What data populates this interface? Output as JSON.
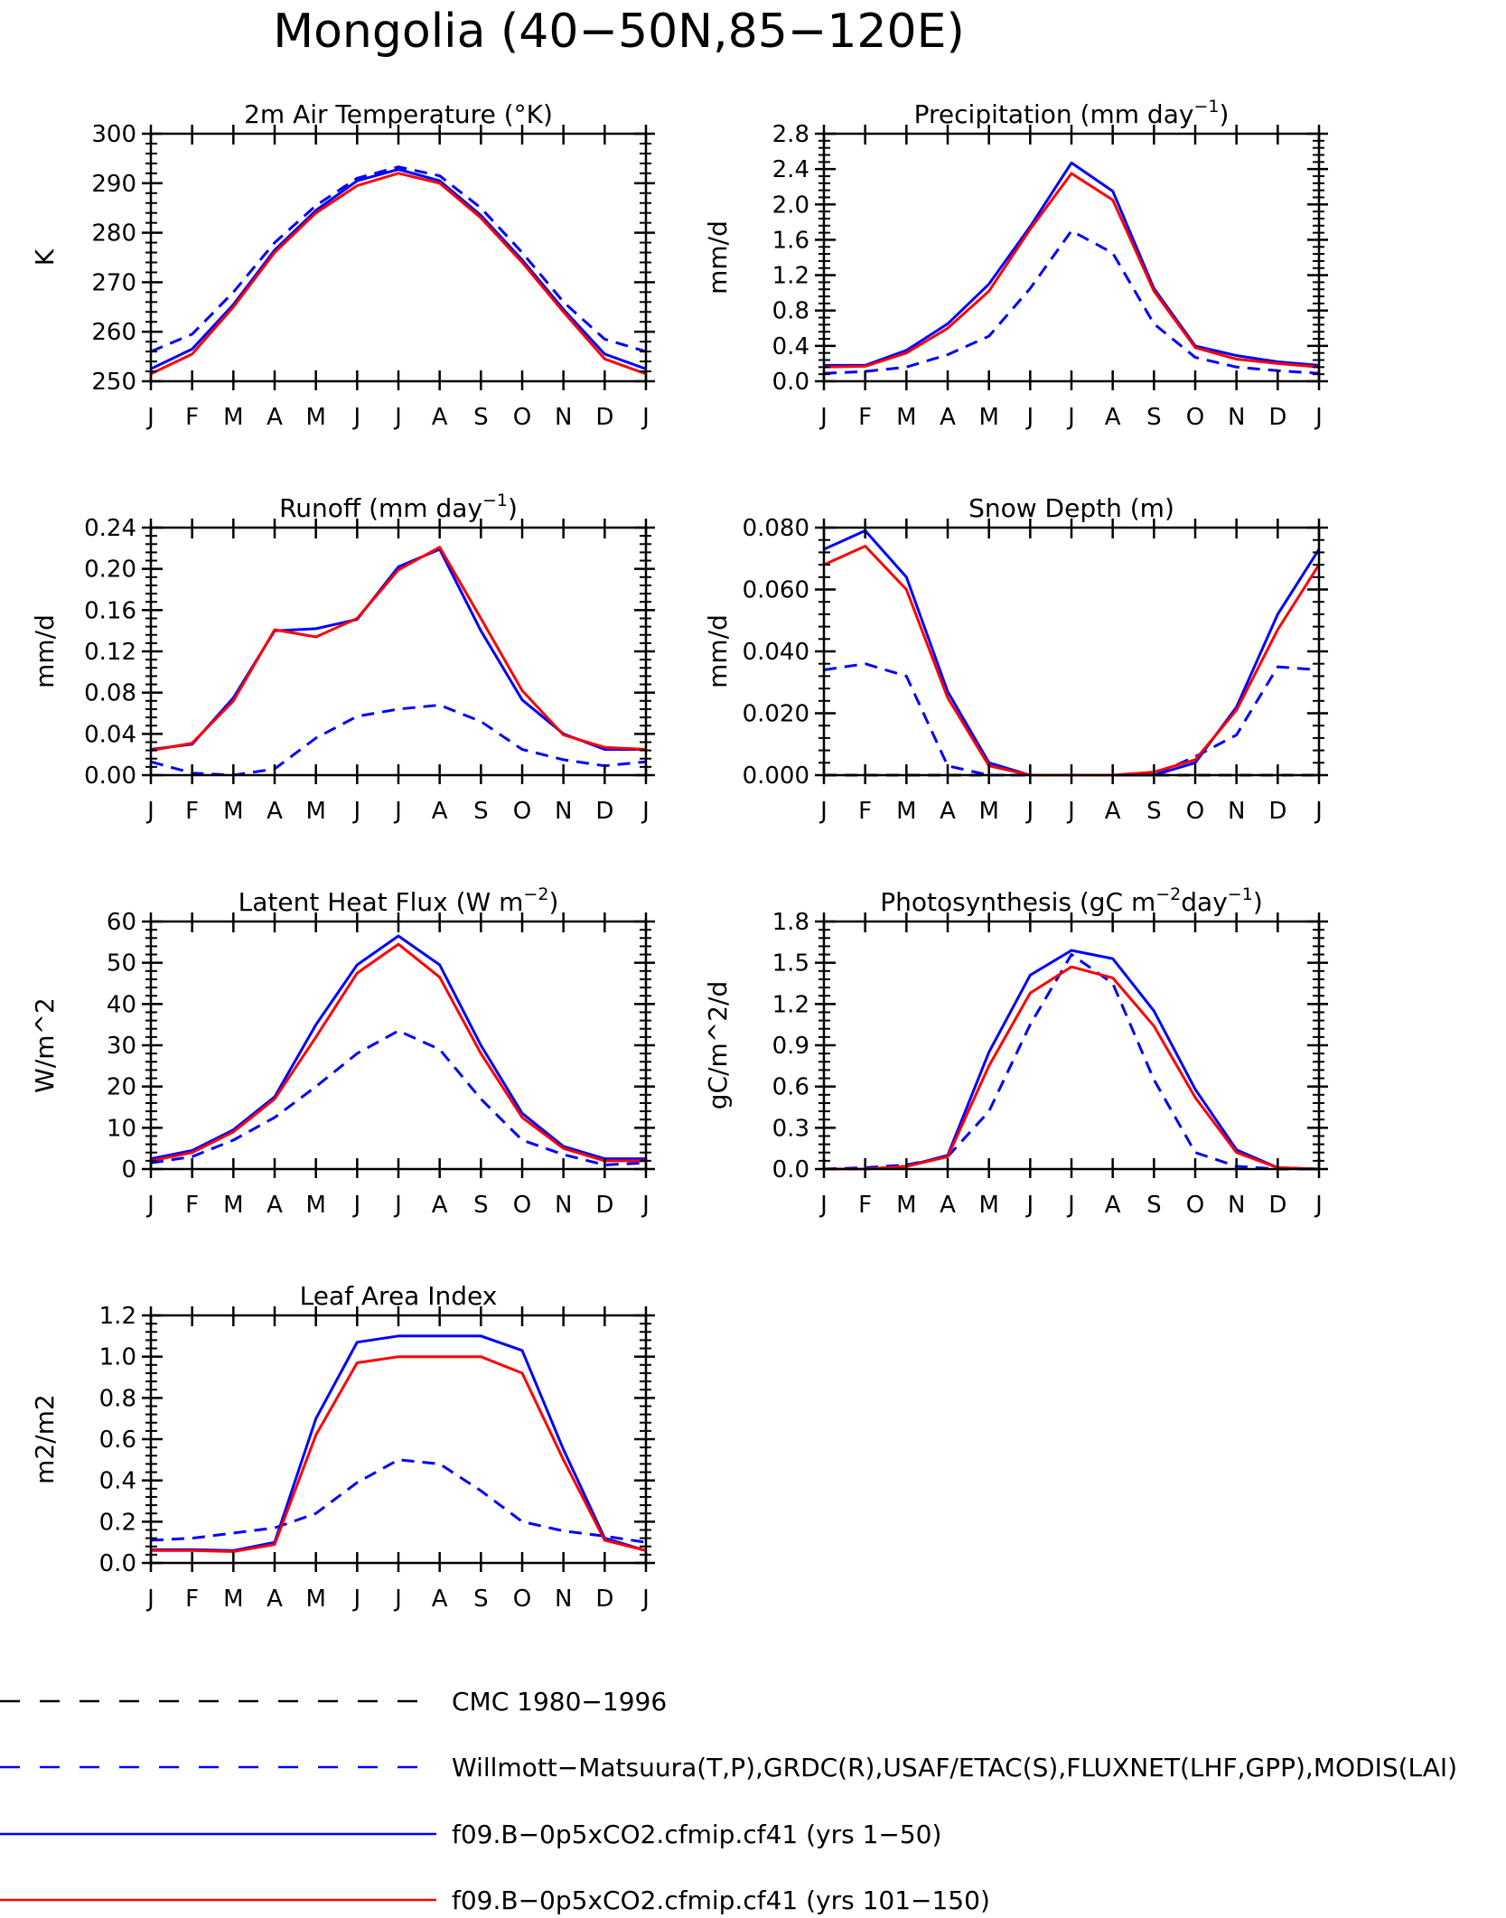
{
  "figure": {
    "title": "Mongolia (40−50N,85−120E)"
  },
  "colors": {
    "obs_primary": "#0000ff",
    "obs_secondary": "#000000",
    "model_a": "#0000ff",
    "model_b": "#ff0000"
  },
  "legend": [
    {
      "label": "CMC 1980−1996",
      "color": "#000000",
      "style": "dashed"
    },
    {
      "label": "Willmott−Matsuura(T,P),GRDC(R),USAF/ETAC(S),FLUXNET(LHF,GPP),MODIS(LAI)",
      "color": "#0000ff",
      "style": "dashed"
    },
    {
      "label": "f09.B−0p5xCO2.cfmip.cf41 (yrs 1−50)",
      "color": "#0000ff",
      "style": "solid"
    },
    {
      "label": "f09.B−0p5xCO2.cfmip.cf41 (yrs 101−150)",
      "color": "#ff0000",
      "style": "solid"
    }
  ],
  "chart_data": [
    {
      "type": "line",
      "title_main": "2m Air Temperature (°K)",
      "title_sup": "",
      "title_tail": "",
      "ylabel": "K",
      "categories": [
        "J",
        "F",
        "M",
        "A",
        "M",
        "J",
        "J",
        "A",
        "S",
        "O",
        "N",
        "D",
        "J"
      ],
      "ylim": [
        250,
        300
      ],
      "yticks": [
        "250",
        "260",
        "270",
        "280",
        "290",
        "300"
      ],
      "yticks_val": [
        250,
        260,
        270,
        280,
        290,
        300
      ],
      "series": [
        {
          "name": "Willmott−Matsuura(T,P)",
          "color": "#0000ff",
          "dashed": true,
          "values": [
            256.0,
            259.5,
            268.0,
            278.0,
            285.5,
            291.0,
            293.3,
            291.5,
            285.0,
            276.0,
            266.0,
            258.5,
            256.0
          ]
        },
        {
          "name": "f09.B−0p5xCO2.cfmip.cf41 (yrs 1−50)",
          "color": "#0000ff",
          "dashed": false,
          "values": [
            252.5,
            256.5,
            265.5,
            276.5,
            284.5,
            290.5,
            292.8,
            290.5,
            283.5,
            274.5,
            264.5,
            255.5,
            252.5
          ]
        },
        {
          "name": "f09.B−0p5xCO2.cfmip.cf41 (yrs 101−150)",
          "color": "#ff0000",
          "dashed": false,
          "values": [
            251.5,
            255.5,
            265.0,
            276.0,
            284.0,
            289.5,
            292.0,
            290.0,
            283.0,
            274.0,
            264.0,
            254.5,
            251.5
          ]
        }
      ]
    },
    {
      "type": "line",
      "title_main": "Precipitation (mm day",
      "title_sup": "−1",
      "title_tail": ")",
      "ylabel": "mm/d",
      "categories": [
        "J",
        "F",
        "M",
        "A",
        "M",
        "J",
        "J",
        "A",
        "S",
        "O",
        "N",
        "D",
        "J"
      ],
      "ylim": [
        0.0,
        2.8
      ],
      "yticks": [
        "0.0",
        "0.4",
        "0.8",
        "1.2",
        "1.6",
        "2.0",
        "2.4",
        "2.8"
      ],
      "yticks_val": [
        0.0,
        0.4,
        0.8,
        1.2,
        1.6,
        2.0,
        2.4,
        2.8
      ],
      "series": [
        {
          "name": "Willmott−Matsuura(T,P)",
          "color": "#0000ff",
          "dashed": true,
          "values": [
            0.09,
            0.11,
            0.16,
            0.3,
            0.51,
            1.05,
            1.7,
            1.45,
            0.65,
            0.27,
            0.16,
            0.12,
            0.09
          ]
        },
        {
          "name": "f09.B−0p5xCO2.cfmip.cf41 (yrs 1−50)",
          "color": "#0000ff",
          "dashed": false,
          "values": [
            0.18,
            0.18,
            0.35,
            0.65,
            1.1,
            1.75,
            2.47,
            2.15,
            1.05,
            0.4,
            0.29,
            0.22,
            0.18
          ]
        },
        {
          "name": "f09.B−0p5xCO2.cfmip.cf41 (yrs 101−150)",
          "color": "#ff0000",
          "dashed": false,
          "values": [
            0.16,
            0.17,
            0.32,
            0.6,
            1.02,
            1.72,
            2.35,
            2.05,
            1.02,
            0.38,
            0.25,
            0.2,
            0.16
          ]
        }
      ]
    },
    {
      "type": "line",
      "title_main": "Runoff (mm day",
      "title_sup": "−1",
      "title_tail": ")",
      "ylabel": "mm/d",
      "categories": [
        "J",
        "F",
        "M",
        "A",
        "M",
        "J",
        "J",
        "A",
        "S",
        "O",
        "N",
        "D",
        "J"
      ],
      "ylim": [
        0.0,
        0.24
      ],
      "yticks": [
        "0.00",
        "0.04",
        "0.08",
        "0.12",
        "0.16",
        "0.20",
        "0.24"
      ],
      "yticks_val": [
        0.0,
        0.04,
        0.08,
        0.12,
        0.16,
        0.2,
        0.24
      ],
      "series": [
        {
          "name": "GRDC(R)",
          "color": "#0000ff",
          "dashed": true,
          "values": [
            0.013,
            0.002,
            0.0,
            0.006,
            0.036,
            0.057,
            0.064,
            0.068,
            0.052,
            0.025,
            0.015,
            0.009,
            0.013
          ]
        },
        {
          "name": "f09.B−0p5xCO2.cfmip.cf41 (yrs 1−50)",
          "color": "#0000ff",
          "dashed": false,
          "values": [
            0.025,
            0.03,
            0.075,
            0.14,
            0.142,
            0.151,
            0.202,
            0.219,
            0.14,
            0.073,
            0.04,
            0.025,
            0.025
          ]
        },
        {
          "name": "f09.B−0p5xCO2.cfmip.cf41 (yrs 101−150)",
          "color": "#ff0000",
          "dashed": false,
          "values": [
            0.024,
            0.031,
            0.072,
            0.141,
            0.134,
            0.152,
            0.199,
            0.221,
            0.152,
            0.082,
            0.039,
            0.027,
            0.025
          ]
        }
      ]
    },
    {
      "type": "line",
      "title_main": "Snow Depth (m)",
      "title_sup": "",
      "title_tail": "",
      "ylabel": "mm/d",
      "categories": [
        "J",
        "F",
        "M",
        "A",
        "M",
        "J",
        "J",
        "A",
        "S",
        "O",
        "N",
        "D",
        "J"
      ],
      "ylim": [
        0.0,
        0.08
      ],
      "yticks": [
        "0.000",
        "0.020",
        "0.040",
        "0.060",
        "0.080"
      ],
      "yticks_val": [
        0.0,
        0.02,
        0.04,
        0.06,
        0.08
      ],
      "series": [
        {
          "name": "CMC 1980−1996",
          "color": "#000000",
          "dashed": true,
          "values": [
            0.0,
            0.0,
            0.0,
            0.0,
            0.0,
            0.0,
            0.0,
            0.0,
            0.0,
            0.0,
            0.0,
            0.0,
            0.0
          ]
        },
        {
          "name": "USAF/ETAC(S)",
          "color": "#0000ff",
          "dashed": true,
          "values": [
            0.034,
            0.036,
            0.032,
            0.003,
            0.0,
            0.0,
            0.0,
            0.0,
            0.0,
            0.006,
            0.013,
            0.035,
            0.034
          ]
        },
        {
          "name": "f09.B−0p5xCO2.cfmip.cf41 (yrs 1−50)",
          "color": "#0000ff",
          "dashed": false,
          "values": [
            0.073,
            0.079,
            0.064,
            0.027,
            0.004,
            0.0,
            0.0,
            0.0,
            0.0,
            0.004,
            0.022,
            0.052,
            0.073
          ]
        },
        {
          "name": "f09.B−0p5xCO2.cfmip.cf41 (yrs 101−150)",
          "color": "#ff0000",
          "dashed": false,
          "values": [
            0.068,
            0.074,
            0.06,
            0.025,
            0.003,
            0.0,
            0.0,
            0.0,
            0.001,
            0.005,
            0.021,
            0.047,
            0.068
          ]
        }
      ]
    },
    {
      "type": "line",
      "title_main": "Latent Heat Flux (W m",
      "title_sup": "−2",
      "title_tail": ")",
      "ylabel": "W/m^2",
      "categories": [
        "J",
        "F",
        "M",
        "A",
        "M",
        "J",
        "J",
        "A",
        "S",
        "O",
        "N",
        "D",
        "J"
      ],
      "ylim": [
        0,
        60
      ],
      "yticks": [
        "0",
        "10",
        "20",
        "30",
        "40",
        "50",
        "60"
      ],
      "yticks_val": [
        0,
        10,
        20,
        30,
        40,
        50,
        60
      ],
      "series": [
        {
          "name": "FLUXNET(LHF)",
          "color": "#0000ff",
          "dashed": true,
          "values": [
            1.5,
            3.0,
            7.0,
            12.5,
            20.0,
            28.0,
            33.5,
            29.0,
            17.0,
            7.0,
            3.5,
            1.0,
            1.5
          ]
        },
        {
          "name": "f09.B−0p5xCO2.cfmip.cf41 (yrs 1−50)",
          "color": "#0000ff",
          "dashed": false,
          "values": [
            2.5,
            4.5,
            9.5,
            17.5,
            35.0,
            49.5,
            56.5,
            49.5,
            30.0,
            13.5,
            5.5,
            2.5,
            2.5
          ]
        },
        {
          "name": "f09.B−0p5xCO2.cfmip.cf41 (yrs 101−150)",
          "color": "#ff0000",
          "dashed": false,
          "values": [
            2.0,
            4.0,
            9.0,
            17.0,
            32.0,
            47.5,
            54.5,
            46.5,
            28.0,
            12.5,
            5.0,
            2.0,
            2.0
          ]
        }
      ]
    },
    {
      "type": "line",
      "title_main": "Photosynthesis (gC m",
      "title_sup": "−2",
      "title_tail": "day",
      "title_sup2": "−1",
      "title_tail2": ")",
      "ylabel": "gC/m^2/d",
      "categories": [
        "J",
        "F",
        "M",
        "A",
        "M",
        "J",
        "J",
        "A",
        "S",
        "O",
        "N",
        "D",
        "J"
      ],
      "ylim": [
        0.0,
        1.8
      ],
      "yticks": [
        "0.0",
        "0.3",
        "0.6",
        "0.9",
        "1.2",
        "1.5",
        "1.8"
      ],
      "yticks_val": [
        0.0,
        0.3,
        0.6,
        0.9,
        1.2,
        1.5,
        1.8
      ],
      "series": [
        {
          "name": "FLUXNET(GPP)",
          "color": "#0000ff",
          "dashed": true,
          "values": [
            0.0,
            0.01,
            0.03,
            0.09,
            0.42,
            1.05,
            1.56,
            1.35,
            0.65,
            0.12,
            0.02,
            0.0,
            0.0
          ]
        },
        {
          "name": "f09.B−0p5xCO2.cfmip.cf41 (yrs 1−50)",
          "color": "#0000ff",
          "dashed": false,
          "values": [
            0.0,
            0.0,
            0.02,
            0.1,
            0.85,
            1.41,
            1.59,
            1.53,
            1.15,
            0.58,
            0.14,
            0.01,
            0.0
          ]
        },
        {
          "name": "f09.B−0p5xCO2.cfmip.cf41 (yrs 101−150)",
          "color": "#ff0000",
          "dashed": false,
          "values": [
            0.0,
            0.0,
            0.02,
            0.09,
            0.75,
            1.28,
            1.47,
            1.39,
            1.04,
            0.52,
            0.12,
            0.01,
            0.0
          ]
        }
      ]
    },
    {
      "type": "line",
      "title_main": "Leaf Area Index",
      "title_sup": "",
      "title_tail": "",
      "ylabel": "m2/m2",
      "categories": [
        "J",
        "F",
        "M",
        "A",
        "M",
        "J",
        "J",
        "A",
        "S",
        "O",
        "N",
        "D",
        "J"
      ],
      "ylim": [
        0.0,
        1.2
      ],
      "yticks": [
        "0.0",
        "0.2",
        "0.4",
        "0.6",
        "0.8",
        "1.0",
        "1.2"
      ],
      "yticks_val": [
        0.0,
        0.2,
        0.4,
        0.6,
        0.8,
        1.0,
        1.2
      ],
      "series": [
        {
          "name": "MODIS(LAI)",
          "color": "#0000ff",
          "dashed": true,
          "values": [
            0.11,
            0.12,
            0.145,
            0.17,
            0.24,
            0.39,
            0.5,
            0.48,
            0.35,
            0.2,
            0.155,
            0.13,
            0.1
          ]
        },
        {
          "name": "f09.B−0p5xCO2.cfmip.cf41 (yrs 1−50)",
          "color": "#0000ff",
          "dashed": false,
          "values": [
            0.065,
            0.065,
            0.06,
            0.1,
            0.7,
            1.07,
            1.1,
            1.1,
            1.1,
            1.03,
            0.55,
            0.12,
            0.06
          ]
        },
        {
          "name": "f09.B−0p5xCO2.cfmip.cf41 (yrs 101−150)",
          "color": "#ff0000",
          "dashed": false,
          "values": [
            0.06,
            0.06,
            0.055,
            0.09,
            0.62,
            0.97,
            1.0,
            1.0,
            1.0,
            0.92,
            0.5,
            0.11,
            0.06
          ]
        }
      ]
    }
  ]
}
